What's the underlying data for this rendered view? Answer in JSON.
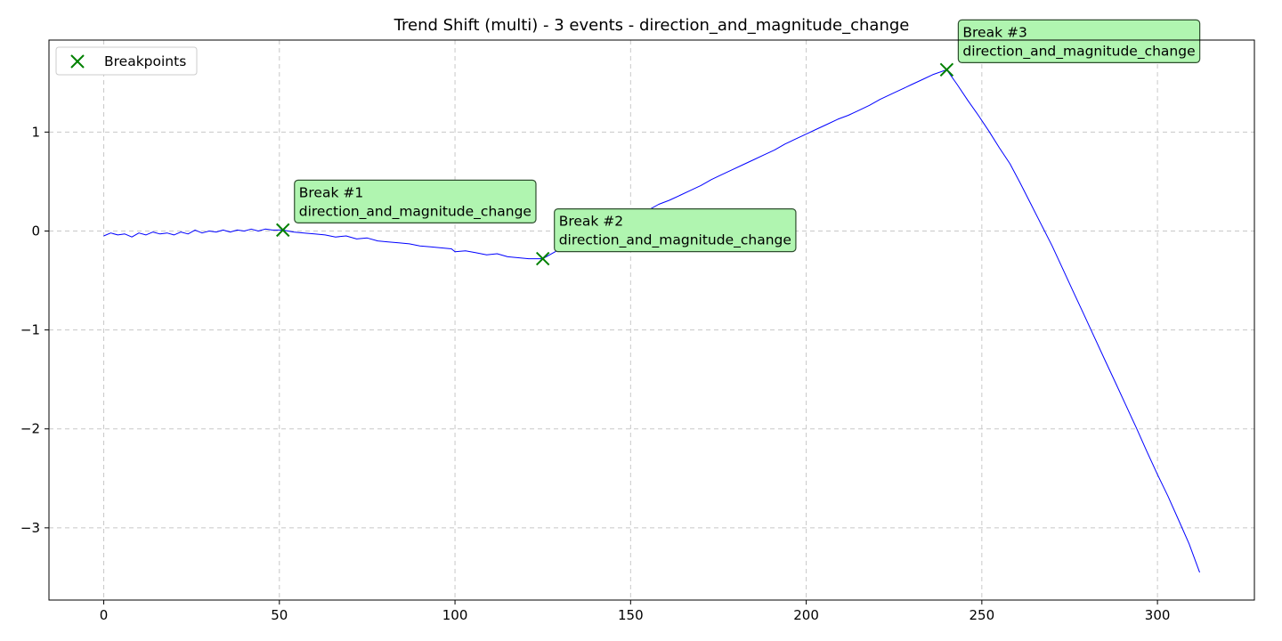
{
  "chart_data": {
    "type": "line",
    "title": "Trend Shift (multi) - 3 events - direction_and_magnitude_change",
    "xlabel": "",
    "ylabel": "",
    "xlim": [
      -15.6,
      327.6
    ],
    "ylim": [
      -3.73,
      1.93
    ],
    "xticks": [
      0,
      50,
      100,
      150,
      200,
      250,
      300
    ],
    "yticks": [
      -3,
      -2,
      -1,
      0,
      1
    ],
    "ytick_labels": [
      "−3",
      "−2",
      "−1",
      "0",
      "1"
    ],
    "grid": true,
    "series": [
      {
        "name": "",
        "color": "#0000ff",
        "points": [
          [
            0,
            -0.05
          ],
          [
            2,
            -0.02
          ],
          [
            4,
            -0.04
          ],
          [
            6,
            -0.03
          ],
          [
            8,
            -0.06
          ],
          [
            10,
            -0.02
          ],
          [
            12,
            -0.04
          ],
          [
            14,
            -0.01
          ],
          [
            16,
            -0.03
          ],
          [
            18,
            -0.02
          ],
          [
            20,
            -0.04
          ],
          [
            22,
            -0.01
          ],
          [
            24,
            -0.03
          ],
          [
            26,
            0.01
          ],
          [
            28,
            -0.02
          ],
          [
            30,
            0.0
          ],
          [
            32,
            -0.01
          ],
          [
            34,
            0.01
          ],
          [
            36,
            -0.01
          ],
          [
            38,
            0.01
          ],
          [
            40,
            0.0
          ],
          [
            42,
            0.02
          ],
          [
            44,
            0.0
          ],
          [
            46,
            0.02
          ],
          [
            48,
            0.01
          ],
          [
            51,
            0.01
          ],
          [
            54,
            -0.01
          ],
          [
            57,
            -0.02
          ],
          [
            60,
            -0.03
          ],
          [
            63,
            -0.04
          ],
          [
            66,
            -0.06
          ],
          [
            69,
            -0.05
          ],
          [
            72,
            -0.08
          ],
          [
            75,
            -0.07
          ],
          [
            78,
            -0.1
          ],
          [
            81,
            -0.11
          ],
          [
            84,
            -0.12
          ],
          [
            87,
            -0.13
          ],
          [
            90,
            -0.15
          ],
          [
            93,
            -0.16
          ],
          [
            96,
            -0.17
          ],
          [
            99,
            -0.18
          ],
          [
            100,
            -0.21
          ],
          [
            103,
            -0.2
          ],
          [
            106,
            -0.22
          ],
          [
            109,
            -0.24
          ],
          [
            112,
            -0.23
          ],
          [
            115,
            -0.26
          ],
          [
            118,
            -0.27
          ],
          [
            121,
            -0.28
          ],
          [
            125,
            -0.28
          ],
          [
            128,
            -0.22
          ],
          [
            131,
            -0.16
          ],
          [
            134,
            -0.12
          ],
          [
            137,
            -0.07
          ],
          [
            140,
            -0.03
          ],
          [
            143,
            0.01
          ],
          [
            146,
            0.06
          ],
          [
            149,
            0.12
          ],
          [
            152,
            0.16
          ],
          [
            155,
            0.21
          ],
          [
            158,
            0.27
          ],
          [
            161,
            0.31
          ],
          [
            164,
            0.36
          ],
          [
            167,
            0.41
          ],
          [
            170,
            0.46
          ],
          [
            173,
            0.52
          ],
          [
            176,
            0.57
          ],
          [
            179,
            0.62
          ],
          [
            182,
            0.67
          ],
          [
            185,
            0.72
          ],
          [
            188,
            0.77
          ],
          [
            191,
            0.82
          ],
          [
            194,
            0.88
          ],
          [
            197,
            0.93
          ],
          [
            200,
            0.98
          ],
          [
            203,
            1.03
          ],
          [
            206,
            1.08
          ],
          [
            209,
            1.13
          ],
          [
            212,
            1.17
          ],
          [
            215,
            1.22
          ],
          [
            218,
            1.27
          ],
          [
            221,
            1.33
          ],
          [
            224,
            1.38
          ],
          [
            227,
            1.43
          ],
          [
            230,
            1.48
          ],
          [
            233,
            1.53
          ],
          [
            236,
            1.58
          ],
          [
            240,
            1.63
          ],
          [
            243,
            1.48
          ],
          [
            246,
            1.32
          ],
          [
            249,
            1.17
          ],
          [
            252,
            1.01
          ],
          [
            255,
            0.84
          ],
          [
            258,
            0.68
          ],
          [
            261,
            0.48
          ],
          [
            264,
            0.27
          ],
          [
            267,
            0.06
          ],
          [
            270,
            -0.15
          ],
          [
            273,
            -0.38
          ],
          [
            276,
            -0.61
          ],
          [
            279,
            -0.84
          ],
          [
            282,
            -1.07
          ],
          [
            285,
            -1.3
          ],
          [
            288,
            -1.53
          ],
          [
            291,
            -1.76
          ],
          [
            294,
            -1.99
          ],
          [
            297,
            -2.23
          ],
          [
            300,
            -2.46
          ],
          [
            303,
            -2.68
          ],
          [
            306,
            -2.92
          ],
          [
            309,
            -3.16
          ],
          [
            312,
            -3.45
          ]
        ]
      }
    ],
    "breakpoints": {
      "name": "Breakpoints",
      "color": "#008000",
      "points": [
        [
          51,
          0.01
        ],
        [
          125,
          -0.28
        ],
        [
          240,
          1.63
        ]
      ]
    },
    "annotations": [
      {
        "line1": "Break #1",
        "line2": "direction_and_magnitude_change",
        "x": 51,
        "y": 0.01
      },
      {
        "line1": "Break #2",
        "line2": "direction_and_magnitude_change",
        "x": 125,
        "y": -0.28
      },
      {
        "line1": "Break #3",
        "line2": "direction_and_magnitude_change",
        "x": 240,
        "y": 1.63
      }
    ],
    "annotation_fill": "#b0f5b0",
    "legend_position": "top-left"
  }
}
